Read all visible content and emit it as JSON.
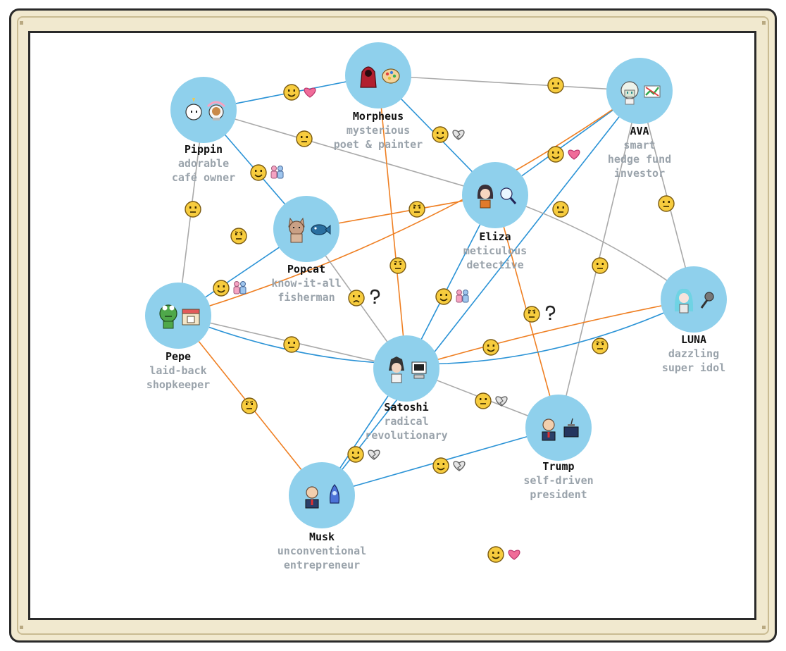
{
  "colors": {
    "node": "#8fd0ec",
    "edge_gray": "#a9a9a9",
    "edge_blue": "#2b93d6",
    "edge_orange": "#ef7f22",
    "emoji": "#f7cc3e",
    "heart": "#f06c99",
    "people": "#f5a3c2",
    "people2": "#9fc6ee"
  },
  "nodes": [
    {
      "id": "pippin",
      "name": "Pippin",
      "desc": [
        "adorable",
        "café owner"
      ],
      "icons": [
        "ghost-icon",
        "latte-icon"
      ]
    },
    {
      "id": "morpheus",
      "name": "Morpheus",
      "desc": [
        "mysterious",
        "poet & painter"
      ],
      "icons": [
        "hooded-figure-icon",
        "palette-icon"
      ]
    },
    {
      "id": "ava",
      "name": "AVA",
      "desc": [
        "smart",
        "hedge fund",
        "investor"
      ],
      "icons": [
        "android-girl-icon",
        "stock-chart-icon"
      ]
    },
    {
      "id": "eliza",
      "name": "Eliza",
      "desc": [
        "meticulous",
        "detective"
      ],
      "icons": [
        "girl-icon",
        "magnifier-icon"
      ]
    },
    {
      "id": "popcat",
      "name": "Popcat",
      "desc": [
        "know-it-all",
        "fisherman"
      ],
      "icons": [
        "cat-icon",
        "fish-icon"
      ]
    },
    {
      "id": "pepe",
      "name": "Pepe",
      "desc": [
        "laid-back",
        "shopkeeper"
      ],
      "icons": [
        "frog-icon",
        "shop-icon"
      ]
    },
    {
      "id": "satoshi",
      "name": "Satoshi",
      "desc": [
        "radical",
        "revolutionary"
      ],
      "icons": [
        "hacker-icon",
        "computer-icon"
      ]
    },
    {
      "id": "luna",
      "name": "LUNA",
      "desc": [
        "dazzling",
        "super idol"
      ],
      "icons": [
        "idol-icon",
        "microphone-icon"
      ]
    },
    {
      "id": "trump",
      "name": "Trump",
      "desc": [
        "self-driven",
        "president"
      ],
      "icons": [
        "man-icon",
        "podium-icon"
      ]
    },
    {
      "id": "musk",
      "name": "Musk",
      "desc": [
        "unconventional",
        "entrepreneur"
      ],
      "icons": [
        "man-icon",
        "rocket-icon"
      ]
    }
  ],
  "edges": [
    {
      "from": "pippin",
      "to": "morpheus",
      "kind": "blue",
      "mood": "happy",
      "badge": "heart"
    },
    {
      "from": "pippin",
      "to": "eliza",
      "kind": "gray",
      "mood": "neutral",
      "badge": ""
    },
    {
      "from": "pippin",
      "to": "popcat",
      "kind": "blue",
      "mood": "happy",
      "badge": "people"
    },
    {
      "from": "pippin",
      "to": "pepe",
      "kind": "gray",
      "mood": "neutral",
      "badge": ""
    },
    {
      "from": "morpheus",
      "to": "ava",
      "kind": "gray",
      "mood": "neutral",
      "badge": ""
    },
    {
      "from": "morpheus",
      "to": "eliza",
      "kind": "blue",
      "mood": "happy",
      "badge": "broken-heart"
    },
    {
      "from": "morpheus",
      "to": "satoshi",
      "kind": "orange",
      "mood": "meh",
      "badge": ""
    },
    {
      "from": "ava",
      "to": "eliza",
      "kind": "blue",
      "mood": "happy",
      "badge": "heart"
    },
    {
      "from": "ava",
      "to": "pepe",
      "kind": "orange",
      "mood": "meh",
      "badge": ""
    },
    {
      "from": "ava",
      "to": "luna",
      "kind": "gray",
      "mood": "neutral",
      "badge": ""
    },
    {
      "from": "ava",
      "to": "trump",
      "kind": "gray",
      "mood": "neutral",
      "badge": ""
    },
    {
      "from": "ava",
      "to": "musk",
      "kind": "blue",
      "mood": "happy",
      "badge": ""
    },
    {
      "from": "eliza",
      "to": "popcat",
      "kind": "orange",
      "mood": "meh",
      "badge": ""
    },
    {
      "from": "eliza",
      "to": "luna",
      "kind": "gray",
      "mood": "neutral",
      "badge": ""
    },
    {
      "from": "eliza",
      "to": "satoshi",
      "kind": "blue",
      "mood": "happy",
      "badge": "people"
    },
    {
      "from": "eliza",
      "to": "trump",
      "kind": "orange",
      "mood": "meh",
      "badge": "question"
    },
    {
      "from": "popcat",
      "to": "pepe",
      "kind": "blue",
      "mood": "happy",
      "badge": "people"
    },
    {
      "from": "popcat",
      "to": "satoshi",
      "kind": "gray",
      "mood": "sad",
      "badge": "question"
    },
    {
      "from": "pepe",
      "to": "satoshi",
      "kind": "gray",
      "mood": "neutral",
      "badge": ""
    },
    {
      "from": "pepe",
      "to": "musk",
      "kind": "orange",
      "mood": "meh",
      "badge": ""
    },
    {
      "from": "pepe",
      "to": "luna",
      "kind": "blue",
      "mood": "happy",
      "badge": "heart"
    },
    {
      "from": "satoshi",
      "to": "luna",
      "kind": "orange",
      "mood": "meh",
      "badge": ""
    },
    {
      "from": "satoshi",
      "to": "trump",
      "kind": "gray",
      "mood": "neutral",
      "badge": "broken-heart"
    },
    {
      "from": "satoshi",
      "to": "musk",
      "kind": "blue",
      "mood": "happy",
      "badge": "broken-heart"
    },
    {
      "from": "trump",
      "to": "musk",
      "kind": "blue",
      "mood": "happy",
      "badge": "broken-heart"
    }
  ]
}
